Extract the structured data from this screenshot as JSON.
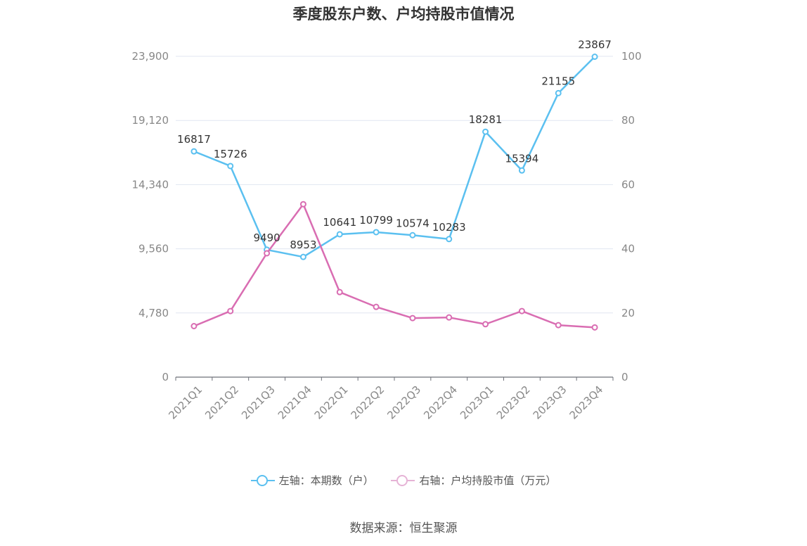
{
  "chart_data": {
    "type": "line",
    "title": "季度股东户数、户均持股市值情况",
    "categories": [
      "2021Q1",
      "2021Q2",
      "2021Q3",
      "2021Q4",
      "2022Q1",
      "2022Q2",
      "2022Q3",
      "2022Q4",
      "2023Q1",
      "2023Q2",
      "2023Q3",
      "2023Q4"
    ],
    "series": [
      {
        "name": "左轴：本期数（户）",
        "axis": "left",
        "color": "#5bc0f0",
        "values": [
          16817,
          15726,
          9490,
          8953,
          10641,
          10799,
          10574,
          10283,
          18281,
          15394,
          21155,
          23867
        ],
        "data_labels": [
          "16817",
          "15726",
          "9490",
          "8953",
          "10641",
          "10799",
          "10574",
          "10283",
          "18281",
          "15394",
          "21155",
          "23867"
        ]
      },
      {
        "name": "右轴：户均持股市值（万元）",
        "axis": "right",
        "color": "#d96db2",
        "values": [
          15.9,
          20.6,
          38.6,
          53.9,
          26.5,
          21.9,
          18.4,
          18.6,
          16.5,
          20.6,
          16.2,
          15.5
        ]
      }
    ],
    "y_left": {
      "min": 0,
      "max": 23900,
      "ticks": [
        "0",
        "4,780",
        "9,560",
        "14,340",
        "19,120",
        "23,900"
      ]
    },
    "y_right": {
      "min": 0,
      "max": 100,
      "ticks": [
        "0",
        "20",
        "40",
        "60",
        "80",
        "100"
      ]
    },
    "grid": true,
    "legend_position": "bottom"
  },
  "source": "数据来源：恒生聚源"
}
